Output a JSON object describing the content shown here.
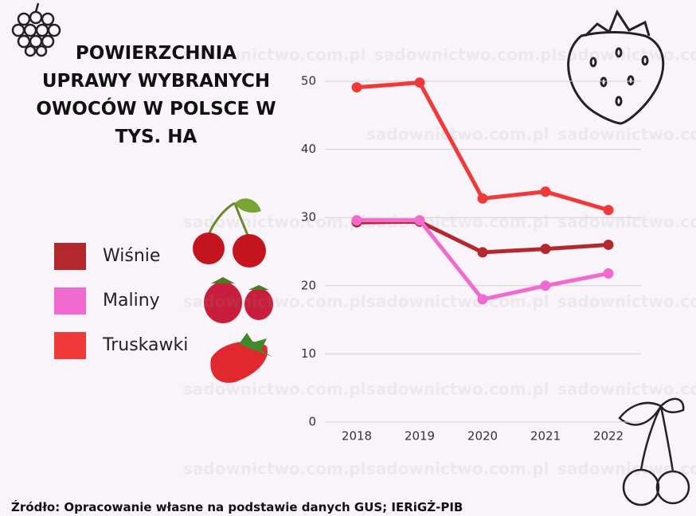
{
  "chart_data": {
    "type": "line",
    "title": "POWIERZCHNIA UPRAWY WYBRANYCH OWOCÓW W POLSCE W TYS. HA",
    "categories": [
      "2018",
      "2019",
      "2020",
      "2021",
      "2022"
    ],
    "series": [
      {
        "name": "Wiśnie",
        "color": "#b3282d",
        "values": [
          29.3,
          29.4,
          24.9,
          25.4,
          26.0
        ]
      },
      {
        "name": "Maliny",
        "color": "#f06ad0",
        "values": [
          29.6,
          29.6,
          18.0,
          20.0,
          21.8
        ]
      },
      {
        "name": "Truskawki",
        "color": "#f03a3a",
        "values": [
          49.1,
          49.8,
          32.8,
          33.8,
          31.1
        ]
      }
    ],
    "ylim": [
      0,
      50
    ],
    "yticks": [
      0,
      10,
      20,
      30,
      40,
      50
    ],
    "grid": true,
    "source": "Źródło: Opracowanie własne na podstawie danych GUS; IERiGŻ-PIB",
    "watermark": "sadownictwo.com.pl"
  }
}
